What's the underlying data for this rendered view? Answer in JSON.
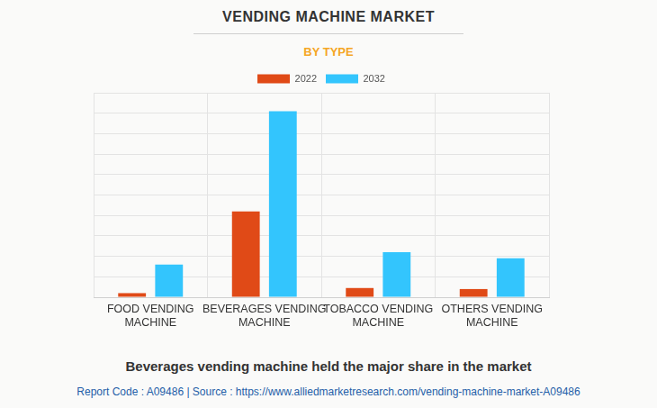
{
  "chart_data": {
    "type": "bar",
    "title": "VENDING MACHINE MARKET",
    "subtitle": "BY TYPE",
    "categories": [
      "FOOD VENDING MACHINE",
      "BEVERAGES VENDING MACHINE",
      "TOBACCO VENDING MACHINE",
      "OTHERS VENDING MACHINE"
    ],
    "series": [
      {
        "name": "2022",
        "color": "#e04a17",
        "values": [
          0.2,
          4.2,
          0.45,
          0.4
        ]
      },
      {
        "name": "2032",
        "color": "#33c5fd",
        "values": [
          1.6,
          9.1,
          2.2,
          1.9
        ]
      }
    ],
    "ylim": [
      0,
      10
    ],
    "yticks": [
      0,
      1,
      2,
      3,
      4,
      5,
      6,
      7,
      8,
      9,
      10
    ],
    "grid": true,
    "legend": "top",
    "tick_labels": "x",
    "annotations": [
      "Beverages vending machine held the major share in the market",
      "Report Code : A09486  |  Source : https://www.alliedmarketresearch.com/vending-machine-market-A09486"
    ]
  }
}
